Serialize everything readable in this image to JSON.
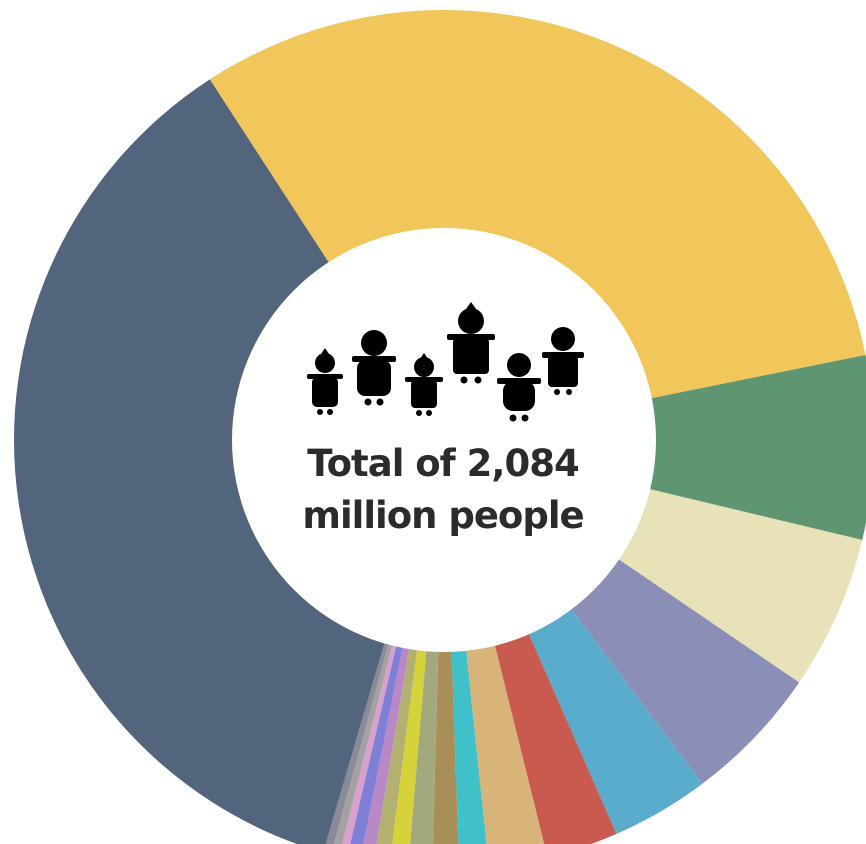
{
  "chart_data": {
    "type": "pie",
    "subtype": "donut",
    "total_label_line1": "Total of 2,084",
    "total_label_line2": "million people",
    "center_icon": "family-people-icon",
    "legend": "none",
    "slices": [
      {
        "value": 31.0,
        "color": "#f1c75c"
      },
      {
        "value": 6.9,
        "color": "#5f9671"
      },
      {
        "value": 5.8,
        "color": "#e8e2b8"
      },
      {
        "value": 5.2,
        "color": "#8b8fb8"
      },
      {
        "value": 3.7,
        "color": "#5aaccc"
      },
      {
        "value": 2.7,
        "color": "#c85a50"
      },
      {
        "value": 2.2,
        "color": "#d7b57a"
      },
      {
        "value": 1.1,
        "color": "#40c0c8"
      },
      {
        "value": 1.0,
        "color": "#a88f58"
      },
      {
        "value": 0.9,
        "color": "#a3a97c"
      },
      {
        "value": 0.7,
        "color": "#d6d23a"
      },
      {
        "value": 0.6,
        "color": "#b3b070"
      },
      {
        "value": 0.5,
        "color": "#b889c6"
      },
      {
        "value": 0.5,
        "color": "#7f7fd8"
      },
      {
        "value": 0.3,
        "color": "#d9a0cc"
      },
      {
        "value": 0.3,
        "color": "#a2a2a2"
      },
      {
        "value": 0.3,
        "color": "#8a8a99"
      },
      {
        "value": 36.3,
        "color": "#52657c"
      }
    ]
  }
}
